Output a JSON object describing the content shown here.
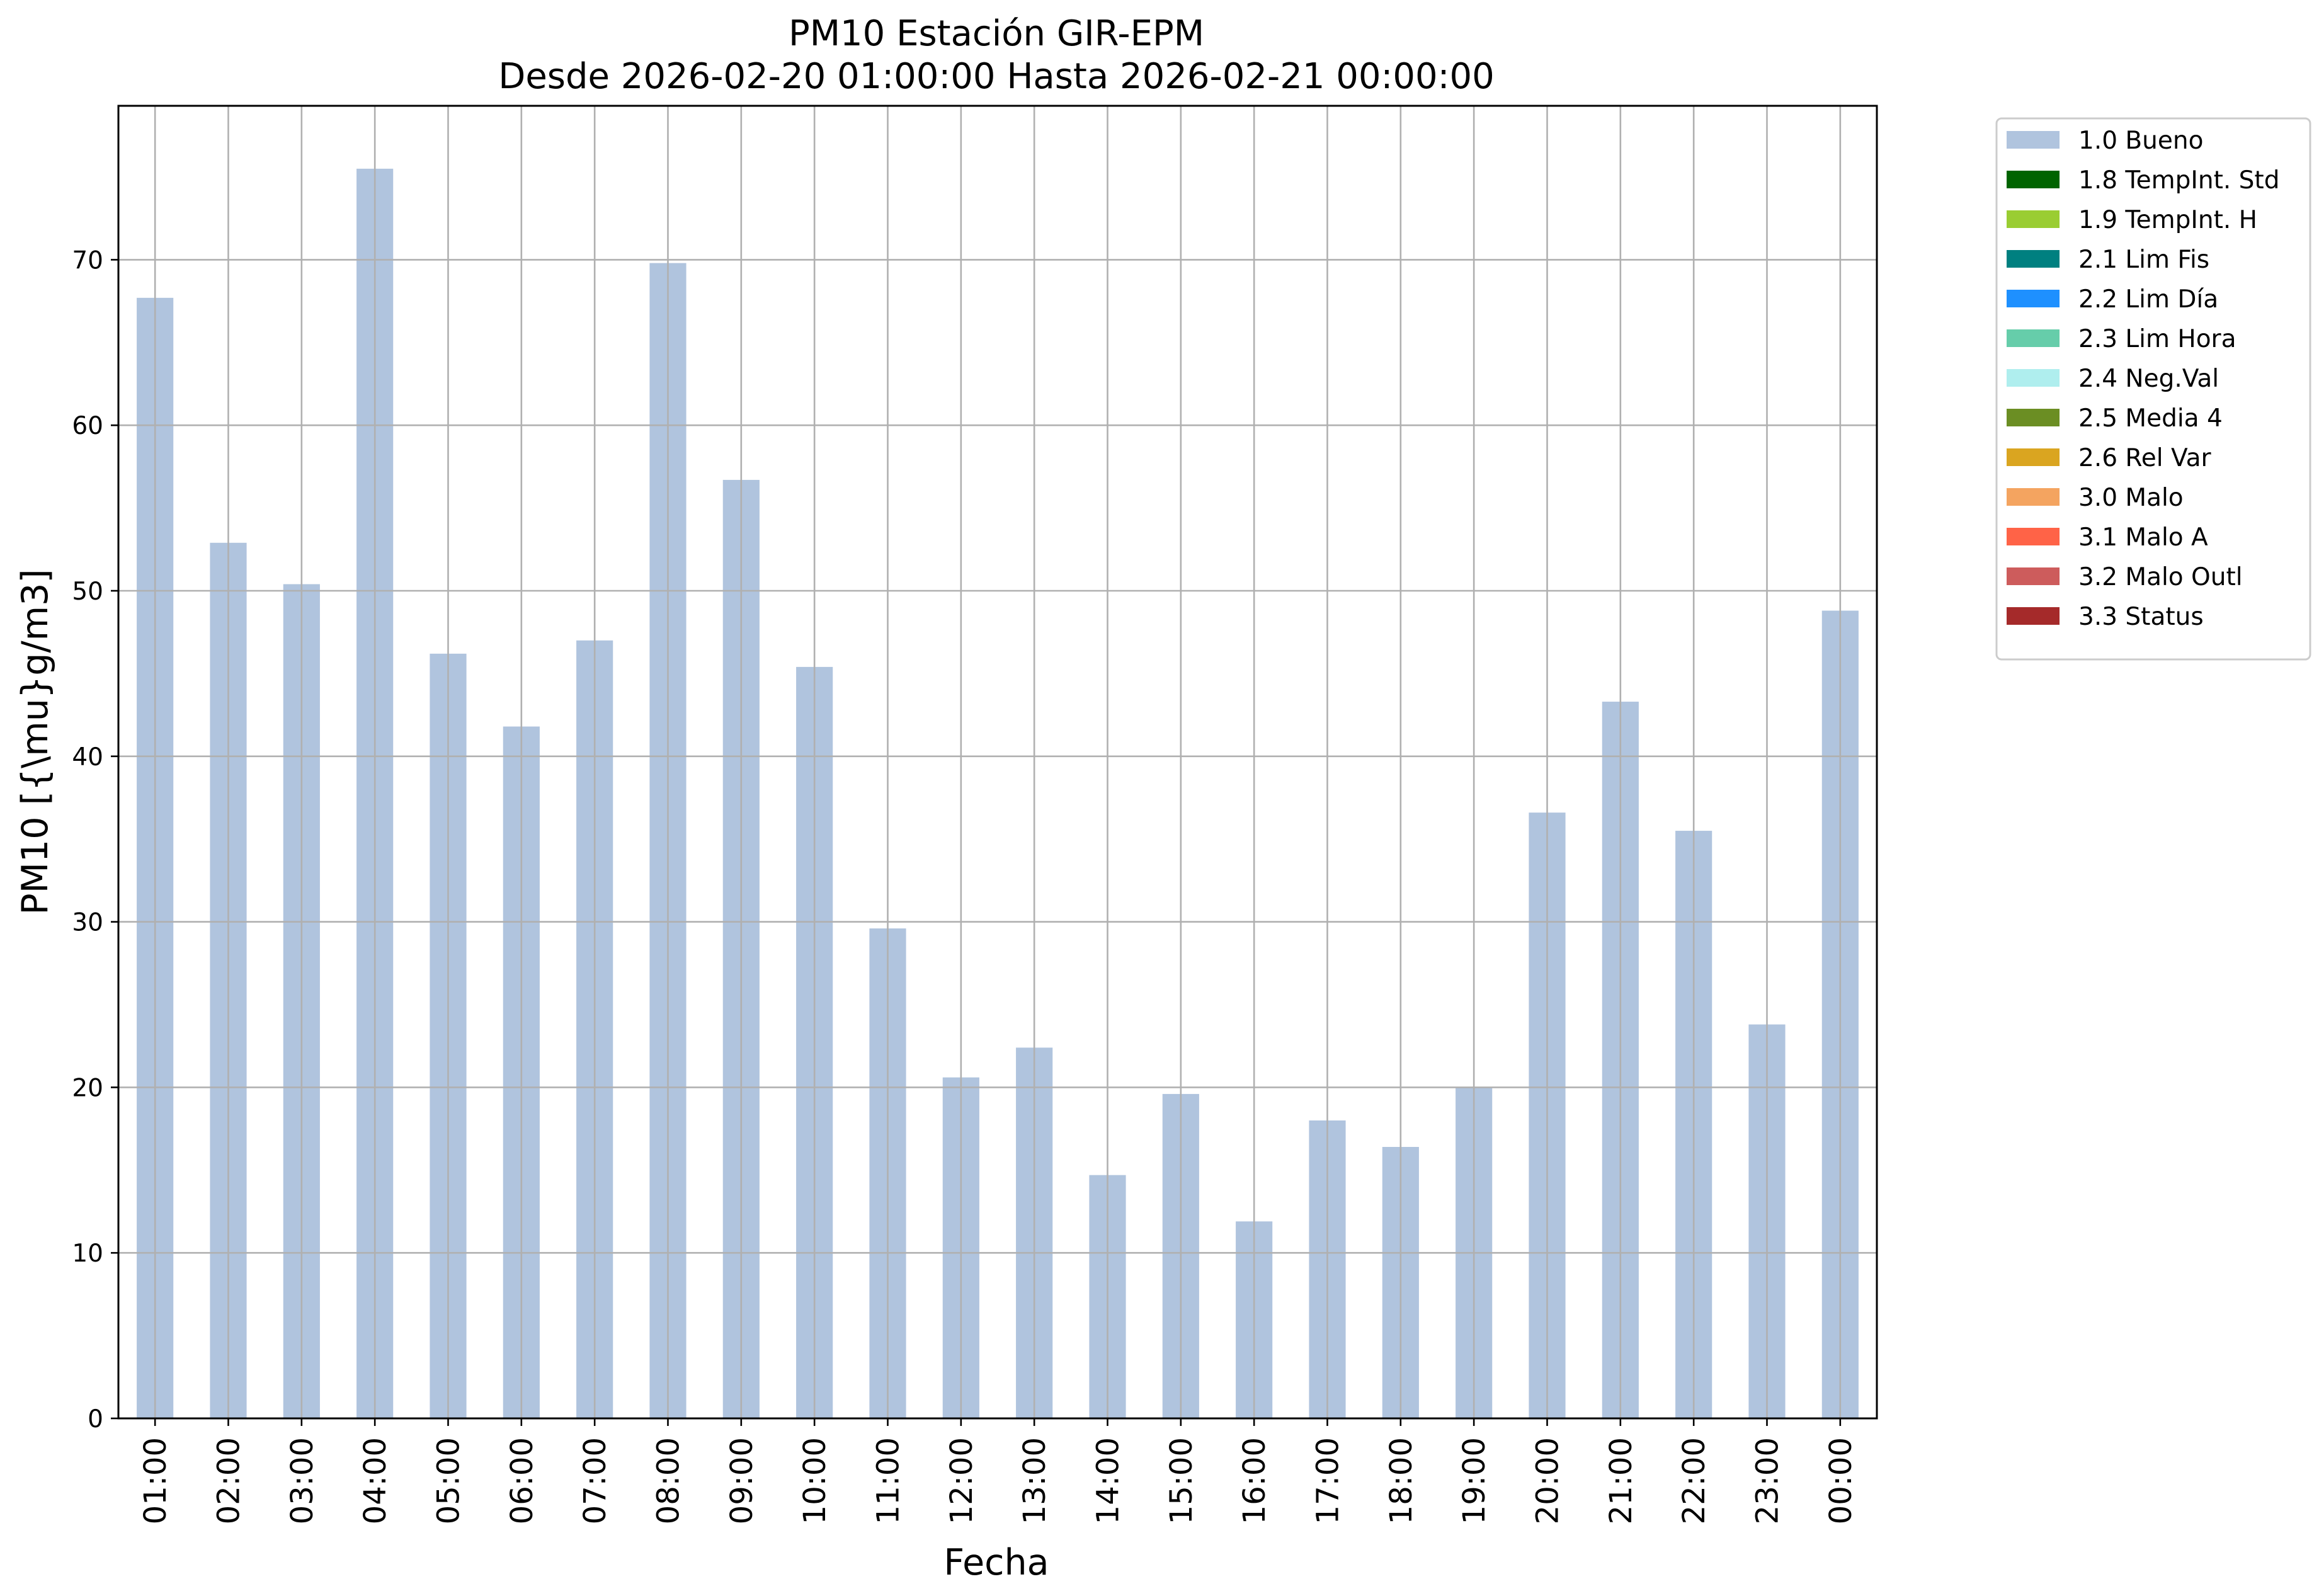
{
  "chart_data": {
    "type": "bar",
    "title": "PM10 Estación GIR-EPM",
    "subtitle": "Desde 2026-02-20 01:00:00 Hasta 2026-02-21 00:00:00",
    "xlabel": "Fecha",
    "ylabel": "PM10 [{\\mu}g/m3]",
    "categories": [
      "01:00",
      "02:00",
      "03:00",
      "04:00",
      "05:00",
      "06:00",
      "07:00",
      "08:00",
      "09:00",
      "10:00",
      "11:00",
      "12:00",
      "13:00",
      "14:00",
      "15:00",
      "16:00",
      "17:00",
      "18:00",
      "19:00",
      "20:00",
      "21:00",
      "22:00",
      "23:00",
      "00:00"
    ],
    "values": [
      67.7,
      52.9,
      50.4,
      75.5,
      46.2,
      41.8,
      47.0,
      69.8,
      56.7,
      45.4,
      29.6,
      20.6,
      22.4,
      14.7,
      19.6,
      11.9,
      18.0,
      16.4,
      20.0,
      36.6,
      43.3,
      35.5,
      23.8,
      48.8
    ],
    "bar_color": "#b0c4de",
    "ylim": [
      0,
      79.3
    ],
    "yticks": [
      0,
      10,
      20,
      30,
      40,
      50,
      60,
      70
    ],
    "grid": true,
    "legend_position": "outside-top-right",
    "legend": [
      {
        "label": "1.0 Bueno",
        "color": "#b0c4de"
      },
      {
        "label": "1.8 TempInt. Std",
        "color": "#006400"
      },
      {
        "label": "1.9 TempInt. H",
        "color": "#9acd32"
      },
      {
        "label": "2.1 Lim Fis",
        "color": "#008080"
      },
      {
        "label": "2.2 Lim Día",
        "color": "#1e90ff"
      },
      {
        "label": "2.3 Lim Hora",
        "color": "#66cdaa"
      },
      {
        "label": "2.4 Neg.Val",
        "color": "#afeeee"
      },
      {
        "label": "2.5 Media 4",
        "color": "#6b8e23"
      },
      {
        "label": "2.6 Rel Var",
        "color": "#daa520"
      },
      {
        "label": "3.0 Malo",
        "color": "#f4a460"
      },
      {
        "label": "3.1 Malo A",
        "color": "#ff6347"
      },
      {
        "label": "3.2 Malo Outl",
        "color": "#cd5c5c"
      },
      {
        "label": "3.3 Status",
        "color": "#a52a2a"
      }
    ]
  }
}
